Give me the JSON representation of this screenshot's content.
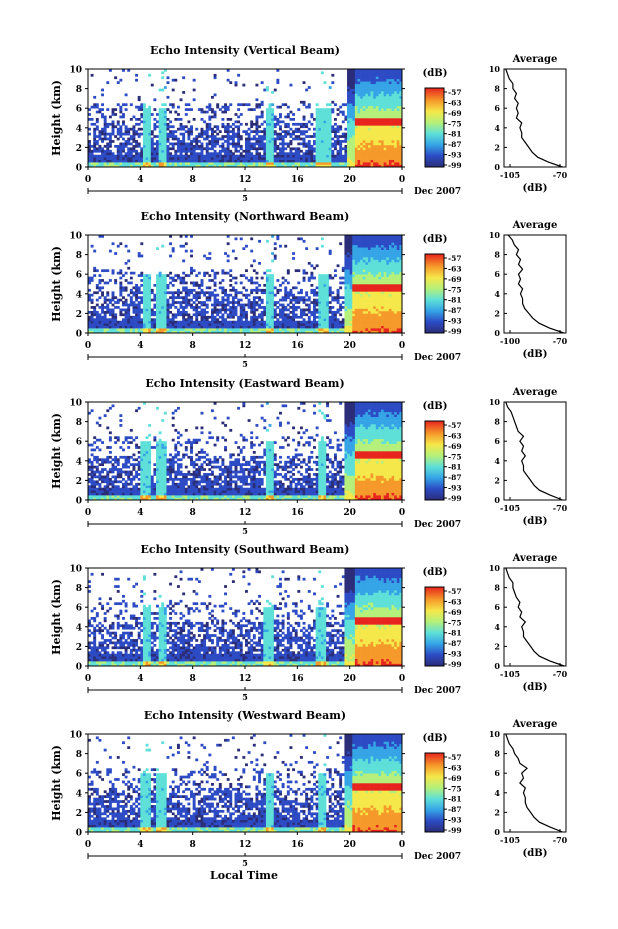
{
  "figure": {
    "xlabel_bottom": "Local Time",
    "date_label": "Dec 2007",
    "colorbar_unit": "(dB)",
    "colorbar_ticks": [
      "-57",
      "-63",
      "-69",
      "-75",
      "-81",
      "-87",
      "-93",
      "-99"
    ],
    "avg_title": "Average",
    "avg_xlabel": "(dB)",
    "date_axis_mark": "5"
  },
  "chart_data": [
    {
      "type": "heatmap",
      "title": "Echo Intensity (Vertical Beam)",
      "xlabel": "",
      "ylabel": "Height (km)",
      "xlim": [
        0,
        24
      ],
      "ylim": [
        0,
        10
      ],
      "xticks": [
        "0",
        "4",
        "8",
        "12",
        "16",
        "20",
        "0"
      ],
      "yticks": [
        "0",
        "2",
        "4",
        "6",
        "8",
        "10"
      ],
      "colorscale": {
        "min": -99,
        "max": -57,
        "unit": "dB"
      },
      "vertical_bands_hours": [
        4.5,
        5.7,
        13.9,
        17.8,
        18.3
      ],
      "rain_start_hour": 19.8,
      "melting_layer_km": 4.6,
      "average_profile": {
        "xlim": [
          -105,
          -70
        ],
        "xticks": [
          "-105",
          "-70"
        ],
        "ylim": [
          0,
          10
        ],
        "yticks": [
          "0",
          "2",
          "4",
          "6",
          "8",
          "10"
        ],
        "height_km": [
          0,
          0.5,
          1,
          1.5,
          2,
          2.5,
          3,
          3.5,
          4,
          4.5,
          5,
          5.5,
          6,
          6.5,
          7,
          7.5,
          8,
          8.5,
          9,
          9.5,
          10
        ],
        "dB": [
          -72,
          -80,
          -86,
          -89,
          -91,
          -93,
          -95,
          -95,
          -96,
          -95,
          -98,
          -97,
          -98,
          -97,
          -99,
          -98,
          -100,
          -100,
          -102,
          -103,
          -104
        ]
      }
    },
    {
      "type": "heatmap",
      "title": "Echo Intensity (Northward Beam)",
      "xlabel": "",
      "ylabel": "Height (km)",
      "xlim": [
        0,
        24
      ],
      "ylim": [
        0,
        10
      ],
      "xticks": [
        "0",
        "4",
        "8",
        "12",
        "16",
        "20",
        "0"
      ],
      "yticks": [
        "0",
        "2",
        "4",
        "6",
        "8",
        "10"
      ],
      "colorscale": {
        "min": -99,
        "max": -57,
        "unit": "dB"
      },
      "vertical_bands_hours": [
        4.5,
        5.6,
        13.9,
        18.0
      ],
      "rain_start_hour": 19.6,
      "melting_layer_km": 4.6,
      "average_profile": {
        "xlim": [
          -100,
          -70
        ],
        "xticks": [
          "-100",
          "-70"
        ],
        "ylim": [
          0,
          10
        ],
        "yticks": [
          "0",
          "2",
          "4",
          "6",
          "8",
          "10"
        ],
        "height_km": [
          0,
          0.5,
          1,
          1.5,
          2,
          2.5,
          3,
          3.5,
          4,
          4.5,
          5,
          5.5,
          6,
          6.5,
          7,
          7.5,
          8,
          8.5,
          9,
          9.5,
          10
        ],
        "dB": [
          -71,
          -78,
          -83,
          -86,
          -88,
          -90,
          -91,
          -91,
          -92,
          -91,
          -93,
          -92,
          -93,
          -91,
          -93,
          -92,
          -94,
          -93,
          -95,
          -96,
          -98
        ]
      }
    },
    {
      "type": "heatmap",
      "title": "Echo Intensity (Eastward Beam)",
      "xlabel": "",
      "ylabel": "Height (km)",
      "xlim": [
        0,
        24
      ],
      "ylim": [
        0,
        10
      ],
      "xticks": [
        "0",
        "4",
        "8",
        "12",
        "16",
        "20",
        "0"
      ],
      "yticks": [
        "0",
        "2",
        "4",
        "6",
        "8",
        "10"
      ],
      "colorscale": {
        "min": -99,
        "max": -57,
        "unit": "dB"
      },
      "vertical_bands_hours": [
        4.4,
        5.6,
        13.9,
        17.9
      ],
      "rain_start_hour": 19.7,
      "melting_layer_km": 4.6,
      "average_profile": {
        "xlim": [
          -105,
          -70
        ],
        "xticks": [
          "-105",
          "-70"
        ],
        "ylim": [
          0,
          10
        ],
        "yticks": [
          "0",
          "2",
          "4",
          "6",
          "8",
          "10"
        ],
        "height_km": [
          0,
          0.5,
          1,
          1.5,
          2,
          2.5,
          3,
          3.5,
          4,
          4.5,
          5,
          5.5,
          6,
          6.5,
          7,
          7.5,
          8,
          8.5,
          9,
          9.5,
          10
        ],
        "dB": [
          -72,
          -79,
          -85,
          -88,
          -90,
          -92,
          -94,
          -94,
          -95,
          -93,
          -95,
          -94,
          -96,
          -94,
          -97,
          -98,
          -99,
          -100,
          -101,
          -103,
          -104
        ]
      }
    },
    {
      "type": "heatmap",
      "title": "Echo Intensity (Southward Beam)",
      "xlabel": "",
      "ylabel": "Height (km)",
      "xlim": [
        0,
        24
      ],
      "ylim": [
        0,
        10
      ],
      "xticks": [
        "0",
        "4",
        "8",
        "12",
        "16",
        "20",
        "0"
      ],
      "yticks": [
        "0",
        "2",
        "4",
        "6",
        "8",
        "10"
      ],
      "colorscale": {
        "min": -99,
        "max": -57,
        "unit": "dB"
      },
      "vertical_bands_hours": [
        4.5,
        5.7,
        13.8,
        17.8
      ],
      "rain_start_hour": 19.7,
      "melting_layer_km": 4.6,
      "average_profile": {
        "xlim": [
          -105,
          -70
        ],
        "xticks": [
          "-105",
          "-70"
        ],
        "ylim": [
          0,
          10
        ],
        "yticks": [
          "0",
          "2",
          "4",
          "6",
          "8",
          "10"
        ],
        "height_km": [
          0,
          0.5,
          1,
          1.5,
          2,
          2.5,
          3,
          3.5,
          4,
          4.5,
          5,
          5.5,
          6,
          6.5,
          7,
          7.5,
          8,
          8.5,
          9,
          9.5,
          10
        ],
        "dB": [
          -71,
          -79,
          -85,
          -88,
          -90,
          -92,
          -94,
          -94,
          -95,
          -93,
          -96,
          -95,
          -97,
          -96,
          -98,
          -99,
          -100,
          -100,
          -102,
          -103,
          -104
        ]
      }
    },
    {
      "type": "heatmap",
      "title": "Echo Intensity (Westward Beam)",
      "xlabel": "Local Time",
      "ylabel": "Height (km)",
      "xlim": [
        0,
        24
      ],
      "ylim": [
        0,
        10
      ],
      "xticks": [
        "0",
        "4",
        "8",
        "12",
        "16",
        "20",
        "0"
      ],
      "yticks": [
        "0",
        "2",
        "4",
        "6",
        "8",
        "10"
      ],
      "colorscale": {
        "min": -99,
        "max": -57,
        "unit": "dB"
      },
      "vertical_bands_hours": [
        4.4,
        5.6,
        13.9,
        17.9
      ],
      "rain_start_hour": 19.6,
      "melting_layer_km": 4.6,
      "average_profile": {
        "xlim": [
          -105,
          -70
        ],
        "xticks": [
          "-105",
          "-70"
        ],
        "ylim": [
          0,
          10
        ],
        "yticks": [
          "0",
          "2",
          "4",
          "6",
          "8",
          "10"
        ],
        "height_km": [
          0,
          0.5,
          1,
          1.5,
          2,
          2.5,
          3,
          3.5,
          4,
          4.5,
          5,
          5.5,
          6,
          6.5,
          7,
          7.5,
          8,
          8.5,
          9,
          9.5,
          10
        ],
        "dB": [
          -72,
          -79,
          -85,
          -88,
          -90,
          -92,
          -93,
          -93,
          -94,
          -93,
          -96,
          -94,
          -95,
          -92,
          -96,
          -97,
          -99,
          -100,
          -102,
          -103,
          -104
        ]
      }
    }
  ]
}
